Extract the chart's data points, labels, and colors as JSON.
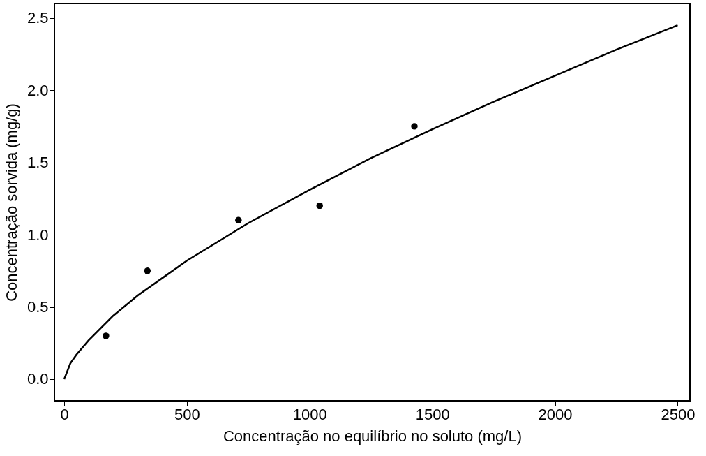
{
  "chart_data": {
    "type": "scatter",
    "xlabel": "Concentração no equilíbrio no soluto (mg/L)",
    "ylabel": "Concentração sorvida (mg/g)",
    "xlim": [
      -40,
      2550
    ],
    "ylim": [
      -0.15,
      2.6
    ],
    "xticks": [
      0,
      500,
      1000,
      1500,
      2000,
      2500
    ],
    "yticks": [
      {
        "value": 0,
        "label": "0.0"
      },
      {
        "value": 0.5,
        "label": "0.5"
      },
      {
        "value": 1,
        "label": "1.0"
      },
      {
        "value": 1.5,
        "label": "1.5"
      },
      {
        "value": 2,
        "label": "2.0"
      },
      {
        "value": 2.5,
        "label": "2.5"
      }
    ],
    "grid": false,
    "series": [
      {
        "marker": "circle",
        "color": "#000000",
        "x": [
          170,
          339,
          710,
          1041,
          1427
        ],
        "values": [
          0.3,
          0.75,
          1.1,
          1.2,
          1.75
        ]
      },
      {
        "type": "line",
        "marker": "none",
        "line_style": "solid",
        "color": "#000000",
        "x": [
          0,
          25,
          50,
          100,
          200,
          300,
          400,
          500,
          750,
          1000,
          1250,
          1500,
          1750,
          2000,
          2250,
          2500
        ],
        "values": [
          0,
          0.11,
          0.17,
          0.27,
          0.44,
          0.58,
          0.7,
          0.82,
          1.08,
          1.31,
          1.53,
          1.73,
          1.92,
          2.1,
          2.28,
          2.45
        ]
      }
    ]
  }
}
